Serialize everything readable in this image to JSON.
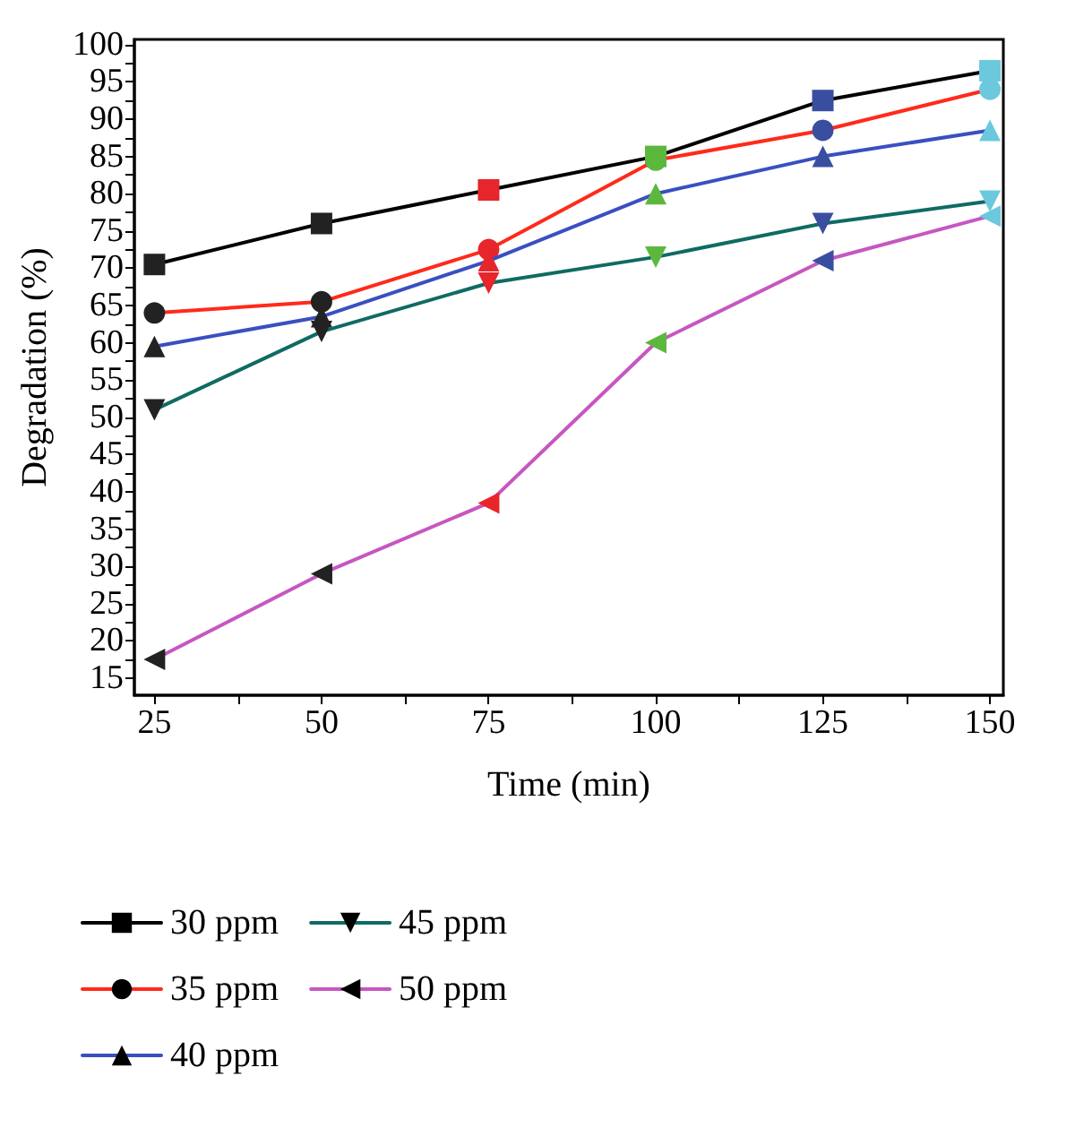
{
  "chart_data": {
    "type": "line",
    "xlabel": "Time (min)",
    "ylabel": "Degradation (%)",
    "x": [
      25,
      50,
      75,
      100,
      125,
      150
    ],
    "xlim": [
      22,
      152
    ],
    "xticks": [
      25,
      {
        "value": 37.5,
        "label": null
      },
      50,
      {
        "value": 62.5,
        "label": null
      },
      75,
      {
        "value": 87.5,
        "label": null
      },
      100,
      {
        "value": 112.5,
        "label": null
      },
      125,
      {
        "value": 137.5,
        "label": null
      },
      150
    ],
    "ylim": [
      12.7,
      100.7
    ],
    "yticks": [
      15,
      {
        "value": 17.5,
        "label": null
      },
      20,
      {
        "value": 22.5,
        "label": null
      },
      25,
      {
        "value": 27.5,
        "label": null
      },
      30,
      {
        "value": 32.5,
        "label": null
      },
      35,
      {
        "value": 37.5,
        "label": null
      },
      40,
      {
        "value": 42.5,
        "label": null
      },
      45,
      {
        "value": 47.5,
        "label": null
      },
      50,
      {
        "value": 52.5,
        "label": null
      },
      55,
      {
        "value": 57.5,
        "label": null
      },
      60,
      {
        "value": 62.5,
        "label": null
      },
      65,
      {
        "value": 67.5,
        "label": null
      },
      70,
      {
        "value": 72.5,
        "label": null
      },
      75,
      {
        "value": 77.5,
        "label": null
      },
      80,
      {
        "value": 82.5,
        "label": null
      },
      85,
      {
        "value": 87.5,
        "label": null
      },
      90,
      {
        "value": 92.5,
        "label": null
      },
      95,
      {
        "value": 97.5,
        "label": null
      },
      100
    ],
    "grid": false,
    "legend": "bottom",
    "line_style": "solid",
    "series": [
      {
        "name": "30 ppm",
        "color": "#000000",
        "marker": "square",
        "colors": [
          "#222222",
          "#222222",
          "#e8252a",
          "#5cb83c",
          "#3a4ea0",
          "#6cc8dc"
        ],
        "values": [
          70.5,
          76,
          80.5,
          85,
          92.5,
          96.5
        ]
      },
      {
        "name": "35 ppm",
        "color": "#ff2a1a",
        "marker": "circle",
        "colors": [
          "#222222",
          "#222222",
          "#e8252a",
          "#5cb83c",
          "#3a4ea0",
          "#6cc8dc"
        ],
        "values": [
          64,
          65.5,
          72.5,
          84.5,
          88.5,
          94
        ]
      },
      {
        "name": "40 ppm",
        "color": "#3a4fc0",
        "marker": "triangle",
        "colors": [
          "#222222",
          "#222222",
          "#e8252a",
          "#5cb83c",
          "#3a4ea0",
          "#6cc8dc"
        ],
        "values": [
          59.5,
          63.5,
          71,
          80,
          85,
          88.5
        ]
      },
      {
        "name": "45 ppm",
        "color": "#0f6b63",
        "marker": "triangle-down",
        "colors": [
          "#222222",
          "#222222",
          "#e8252a",
          "#5cb83c",
          "#3a4ea0",
          "#6cc8dc"
        ],
        "values": [
          51,
          61.5,
          68,
          71.5,
          76,
          79
        ]
      },
      {
        "name": "50 ppm",
        "color": "#c657c0",
        "marker": "triangle-left",
        "colors": [
          "#222222",
          "#222222",
          "#e8252a",
          "#5cb83c",
          "#3a4ea0",
          "#6cc8dc"
        ],
        "values": [
          17.5,
          29,
          38.5,
          60,
          71,
          77
        ]
      }
    ]
  }
}
